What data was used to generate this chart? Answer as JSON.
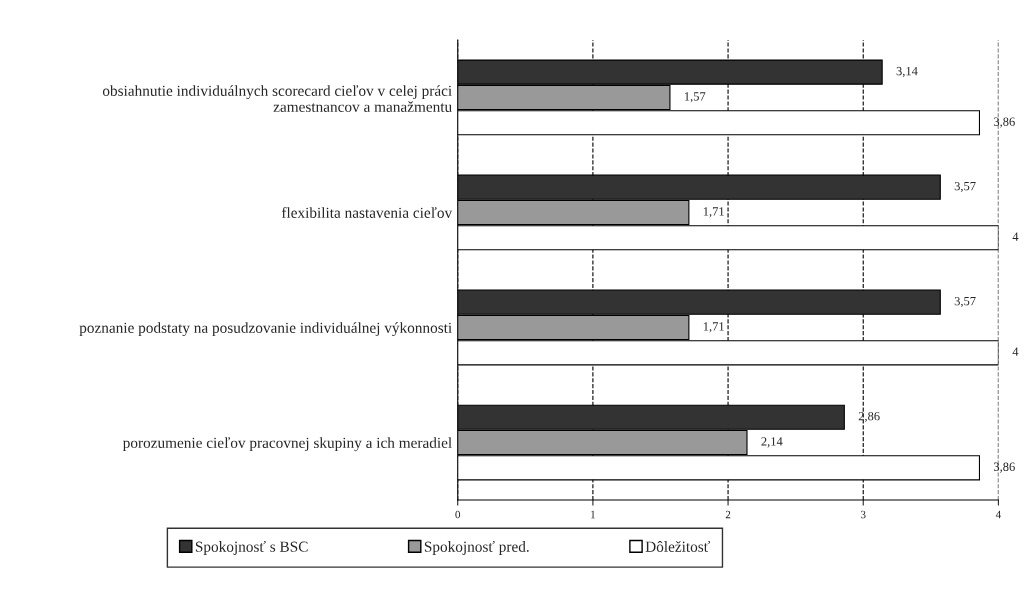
{
  "chart_data": {
    "type": "bar",
    "orientation": "horizontal",
    "categories": [
      "obsiahnutie individuálnych scorecard cieľov v celej práci\nzamestnancov a manažmentu",
      "flexibilita nastavenia cieľov",
      "poznanie podstaty na posudzovanie individuálnej výkonnosti",
      "porozumenie cieľov pracovnej skupiny a ich meradiel"
    ],
    "series": [
      {
        "name": "Spokojnosť s BSC",
        "color": "#333333",
        "values": [
          3.14,
          3.57,
          3.57,
          2.86
        ],
        "value_labels": [
          "3,14",
          "3,57",
          "3,57",
          "2,86"
        ]
      },
      {
        "name": "Spokojnosť pred.",
        "color": "#999999",
        "values": [
          1.57,
          1.71,
          1.71,
          2.14
        ],
        "value_labels": [
          "1,57",
          "1,71",
          "1,71",
          "2,14"
        ]
      },
      {
        "name": "Dôležitosť",
        "color": "#ffffff",
        "values": [
          3.86,
          4,
          4,
          3.86
        ],
        "value_labels": [
          "3,86",
          "4",
          "4",
          "3,86"
        ]
      }
    ],
    "xlim": [
      0,
      4
    ],
    "xticks": [
      0,
      1,
      2,
      3,
      4
    ],
    "grid": "x",
    "legend": "bottom"
  }
}
